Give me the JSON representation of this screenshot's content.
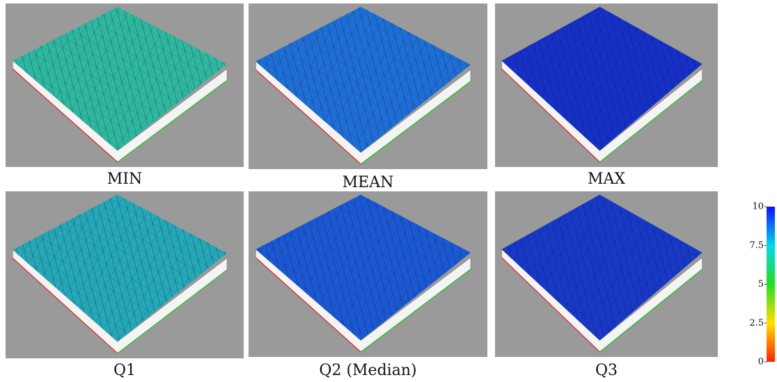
{
  "panels": [
    {
      "label": "MIN",
      "color": "#2fb8a0"
    },
    {
      "label": "MEAN",
      "color": "#1f6fd8"
    },
    {
      "label": "MAX",
      "color": "#1630c8"
    },
    {
      "label": "Q1",
      "color": "#25a8b8"
    },
    {
      "label": "Q2 (Median)",
      "color": "#1b58d4"
    },
    {
      "label": "Q3",
      "color": "#1838c8"
    }
  ],
  "colorbar": {
    "lim": [
      0,
      10
    ],
    "ticks": [
      0,
      2.5,
      5,
      7.5,
      10
    ]
  }
}
